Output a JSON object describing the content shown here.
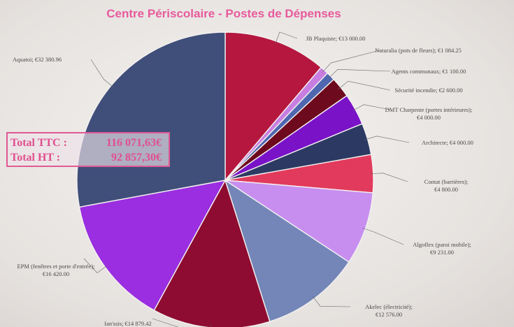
{
  "chart_data": {
    "type": "pie",
    "title": "Centre Périscolaire - Postes de Dépenses",
    "start_angle_deg": 0,
    "direction": "clockwise",
    "slices": [
      {
        "name": "JB Plaquiste",
        "value": 13000,
        "value_label": "€13 000.00",
        "color": "#b5173f"
      },
      {
        "name": "Naturalia (pots de fleurs)",
        "value": 1084.25,
        "value_label": "€1 084.25",
        "color": "#c87ee0"
      },
      {
        "name": "Agents communaux",
        "value": 1100,
        "value_label": "€1 100.00",
        "color": "#4f67b0"
      },
      {
        "name": "Sécurité incendie",
        "value": 2600,
        "value_label": "€2 600.00",
        "color": "#6d0a1e"
      },
      {
        "name": "DMT Charpente (portes intérieures)",
        "value": 4000,
        "value_label": "€4 000.00",
        "color": "#7a12c8"
      },
      {
        "name": "Architecte",
        "value": 4000,
        "value_label": "€4 000.00",
        "color": "#2c3a63"
      },
      {
        "name": "Contat (barrières)",
        "value": 4800,
        "value_label": "€4 800.00",
        "color": "#e23a5d"
      },
      {
        "name": "Algoflex (paroi mobile)",
        "value": 9231,
        "value_label": "€9 231.00",
        "color": "#c78ef0"
      },
      {
        "name": "Akelec (électricité)",
        "value": 12576,
        "value_label": "€12 576.00",
        "color": "#7486b8"
      },
      {
        "name": "Ian'ssis",
        "value": 14879.42,
        "value_label": "€14 879.42",
        "color": "#8e0c31"
      },
      {
        "name": "EPM (fenêtres et porte d'entrée)",
        "value": 16420,
        "value_label": "€16 420.00",
        "color": "#9a2ee0"
      },
      {
        "name": "Aquatoi",
        "value": 32380.96,
        "value_label": "€32 380.96",
        "color": "#404e7a"
      }
    ]
  },
  "totals": {
    "ttc_label": "Total TTC :",
    "ttc_value": "116 071,63€",
    "ht_label": "Total HT :",
    "ht_value": "92 857,30€"
  }
}
